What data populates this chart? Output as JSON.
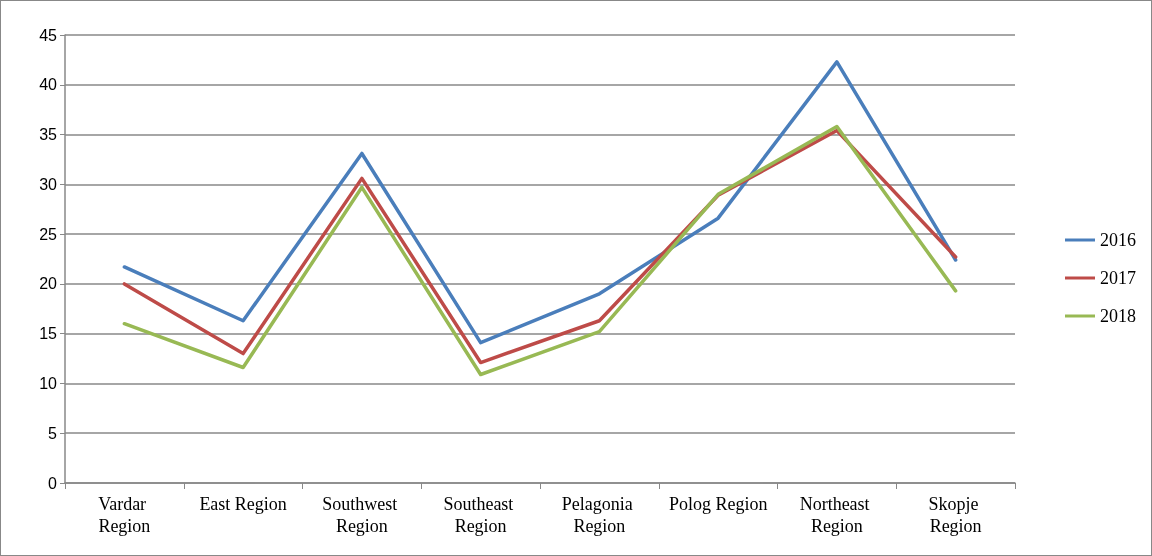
{
  "chart_data": {
    "type": "line",
    "categories": [
      "Vardar Region",
      "East Region",
      "Southwest Region",
      "Southeast Region",
      "Pelagonia Region",
      "Polog Region",
      "Northeast Region",
      "Skopje Region"
    ],
    "series": [
      {
        "name": "2016",
        "color": "#4a7ebb",
        "values": [
          21.7,
          16.3,
          33.1,
          14.1,
          19.0,
          26.6,
          42.3,
          22.4
        ]
      },
      {
        "name": "2017",
        "color": "#be4b48",
        "values": [
          20.0,
          13.0,
          30.6,
          12.1,
          16.3,
          28.9,
          35.4,
          22.7
        ]
      },
      {
        "name": "2018",
        "color": "#98b954",
        "values": [
          16.0,
          11.6,
          29.7,
          10.9,
          15.2,
          29.0,
          35.8,
          19.3
        ]
      }
    ],
    "ylim": [
      0,
      45
    ],
    "yticks": [
      0,
      5,
      10,
      15,
      20,
      25,
      30,
      35,
      40,
      45
    ],
    "grid": "y",
    "legend": "right",
    "marker": "none",
    "line_style": "solid"
  }
}
